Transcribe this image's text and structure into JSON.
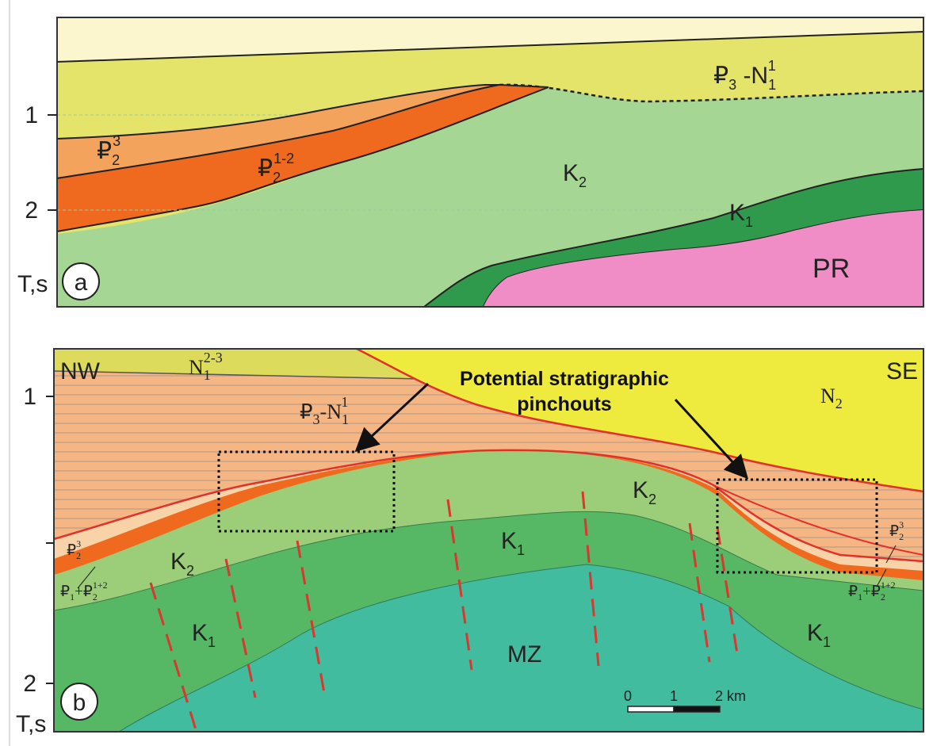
{
  "panel_a": {
    "tag": "a",
    "time_ticks": [
      1,
      2
    ],
    "time_unit": "T,s",
    "labels": [
      {
        "parts": [
          "₽",
          "3",
          " -N",
          "1",
          "1"
        ]
      },
      {
        "parts": [
          "₽",
          "2",
          "3"
        ]
      },
      {
        "parts": [
          "₽",
          "2",
          "1-2"
        ]
      },
      {
        "parts": [
          "K",
          "2"
        ]
      },
      {
        "parts": [
          "K",
          "1"
        ]
      },
      {
        "parts": [
          "PR"
        ]
      }
    ]
  },
  "panel_b": {
    "tag": "b",
    "time_ticks": [
      1,
      2
    ],
    "time_unit": "T,s",
    "directions": [
      "NW",
      "SE"
    ],
    "callout": [
      "Potential stratigraphic",
      "pinchouts"
    ],
    "labels": [
      {
        "parts": [
          "N",
          "1",
          "2-3"
        ]
      },
      {
        "parts": [
          "₽",
          "3",
          "-N",
          "1",
          "1"
        ]
      },
      {
        "parts": [
          "N",
          "2"
        ]
      },
      {
        "parts": [
          "K",
          "2"
        ]
      },
      {
        "parts": [
          "K",
          "2"
        ]
      },
      {
        "parts": [
          "K",
          "1"
        ]
      },
      {
        "parts": [
          "K",
          "1"
        ]
      },
      {
        "parts": [
          "K",
          "1"
        ]
      },
      {
        "parts": [
          "MZ"
        ]
      },
      {
        "parts": [
          "₽",
          "2",
          "3"
        ]
      },
      {
        "parts": [
          "₽",
          "2",
          "3"
        ]
      },
      {
        "parts": [
          "₽",
          "1",
          "+₽",
          "2",
          "1+2"
        ]
      },
      {
        "parts": [
          "₽",
          "1",
          "+₽",
          "2",
          "1+2"
        ]
      }
    ],
    "scale_bar": [
      "0",
      "1",
      "2 km"
    ]
  }
}
